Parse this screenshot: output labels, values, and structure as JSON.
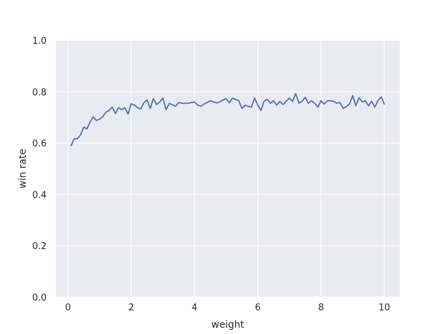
{
  "chart_data": {
    "type": "line",
    "title": "",
    "xlabel": "weight",
    "ylabel": "win rate",
    "xlim": [
      -0.39,
      10.49
    ],
    "ylim": [
      0.0,
      1.0
    ],
    "x_ticks": [
      0,
      2,
      4,
      6,
      8,
      10
    ],
    "x_tick_labels": [
      "0",
      "2",
      "4",
      "6",
      "8",
      "10"
    ],
    "y_ticks": [
      0.0,
      0.2,
      0.4,
      0.6,
      0.8,
      1.0
    ],
    "y_tick_labels": [
      "0.0",
      "0.2",
      "0.4",
      "0.6",
      "0.8",
      "1.0"
    ],
    "grid": true,
    "background_color": "#eaeaf2",
    "grid_color": "#ffffff",
    "series": [
      {
        "color": "#4c72b0",
        "x": [
          0.1,
          0.2,
          0.3,
          0.4,
          0.5,
          0.6,
          0.7,
          0.8,
          0.9,
          1.0,
          1.1,
          1.2,
          1.3,
          1.4,
          1.5,
          1.6,
          1.7,
          1.8,
          1.9,
          2.0,
          2.1,
          2.2,
          2.3,
          2.4,
          2.5,
          2.6,
          2.7,
          2.8,
          2.9,
          3.0,
          3.1,
          3.2,
          3.3,
          3.4,
          3.5,
          3.6,
          3.7,
          3.8,
          3.9,
          4.0,
          4.1,
          4.2,
          4.3,
          4.4,
          4.5,
          4.6,
          4.7,
          4.8,
          4.9,
          5.0,
          5.1,
          5.2,
          5.3,
          5.4,
          5.5,
          5.6,
          5.7,
          5.8,
          5.9,
          6.0,
          6.1,
          6.2,
          6.3,
          6.4,
          6.5,
          6.6,
          6.7,
          6.8,
          6.9,
          7.0,
          7.1,
          7.2,
          7.3,
          7.4,
          7.5,
          7.6,
          7.7,
          7.8,
          7.9,
          8.0,
          8.1,
          8.2,
          8.3,
          8.4,
          8.5,
          8.6,
          8.7,
          8.8,
          8.9,
          9.0,
          9.1,
          9.2,
          9.3,
          9.4,
          9.5,
          9.6,
          9.7,
          9.8,
          9.9,
          10.0
        ],
        "values": [
          0.59,
          0.617,
          0.617,
          0.632,
          0.662,
          0.655,
          0.683,
          0.702,
          0.688,
          0.693,
          0.703,
          0.72,
          0.727,
          0.74,
          0.715,
          0.738,
          0.73,
          0.738,
          0.713,
          0.753,
          0.748,
          0.738,
          0.733,
          0.757,
          0.768,
          0.735,
          0.773,
          0.75,
          0.76,
          0.775,
          0.73,
          0.754,
          0.75,
          0.743,
          0.758,
          0.755,
          0.755,
          0.755,
          0.758,
          0.76,
          0.748,
          0.743,
          0.752,
          0.758,
          0.765,
          0.76,
          0.757,
          0.76,
          0.768,
          0.773,
          0.757,
          0.775,
          0.77,
          0.765,
          0.735,
          0.748,
          0.743,
          0.74,
          0.775,
          0.748,
          0.727,
          0.763,
          0.77,
          0.755,
          0.765,
          0.748,
          0.762,
          0.75,
          0.763,
          0.775,
          0.762,
          0.793,
          0.755,
          0.763,
          0.778,
          0.755,
          0.765,
          0.755,
          0.74,
          0.765,
          0.752,
          0.765,
          0.765,
          0.762,
          0.755,
          0.758,
          0.735,
          0.742,
          0.752,
          0.785,
          0.745,
          0.777,
          0.76,
          0.765,
          0.745,
          0.763,
          0.74,
          0.765,
          0.78,
          0.752
        ]
      }
    ]
  }
}
